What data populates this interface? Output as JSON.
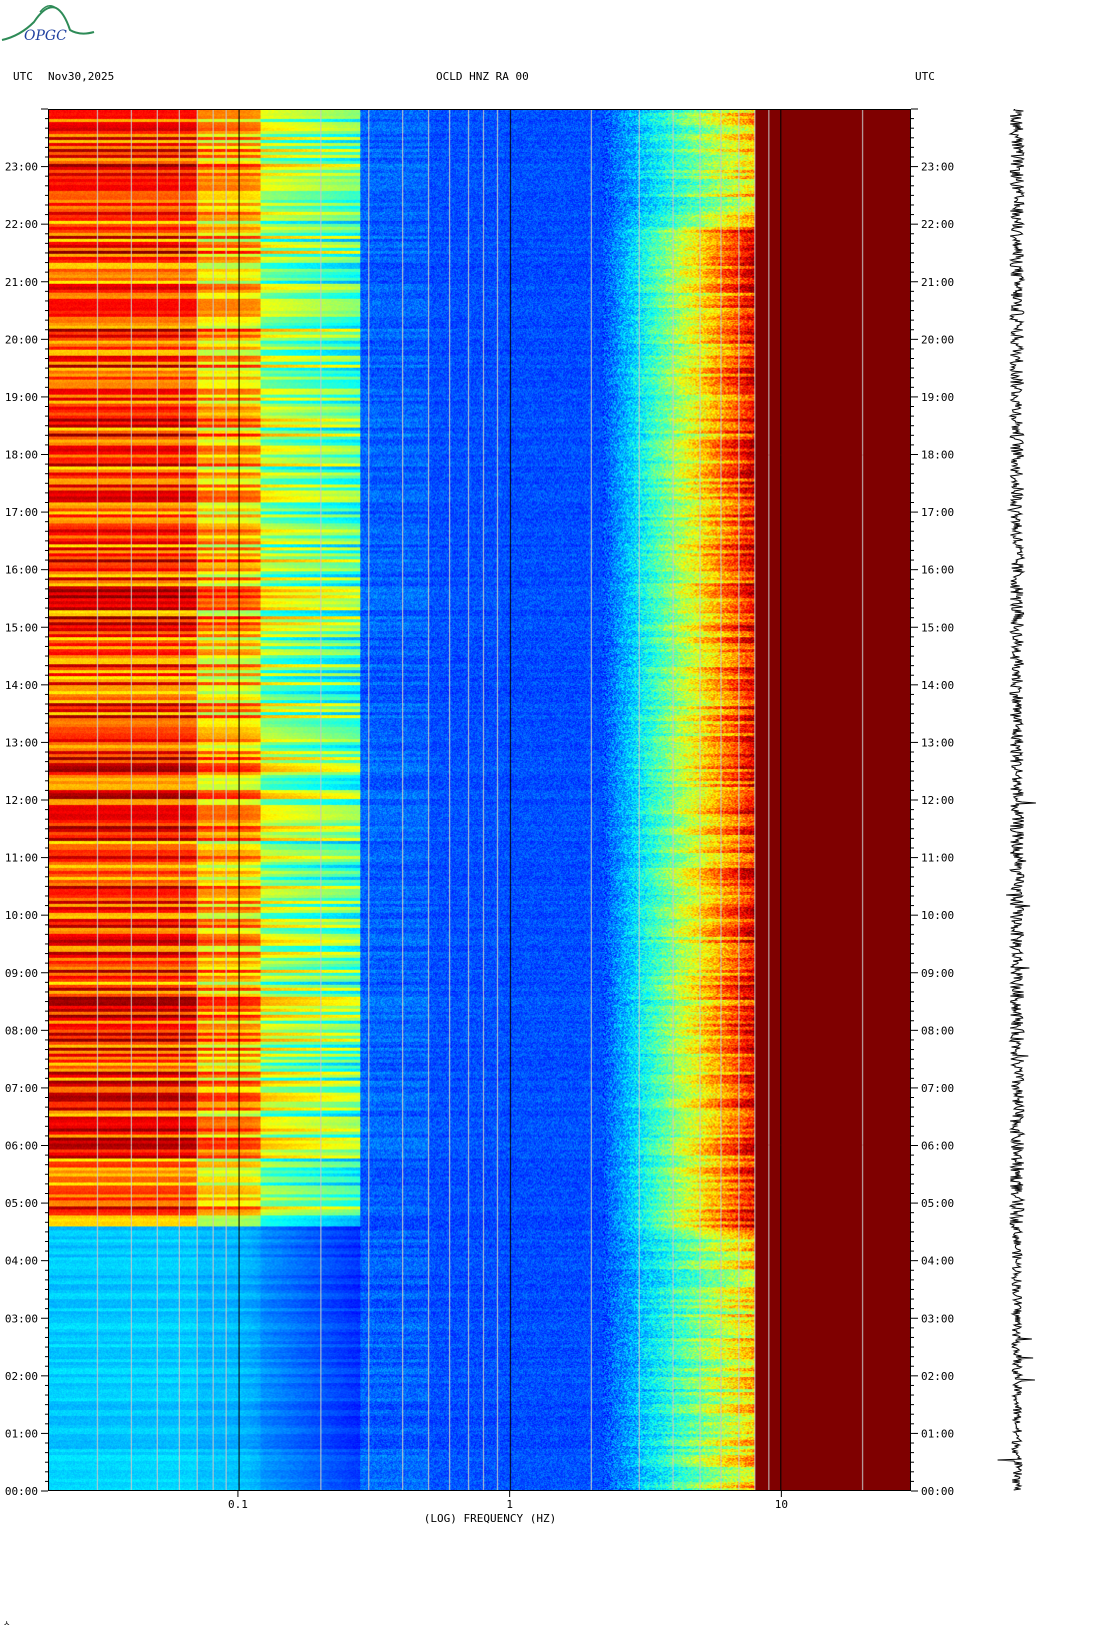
{
  "logo": {
    "text": "OPGC",
    "icon": "opgc-volcano-logo"
  },
  "header": {
    "left_tz": "UTC",
    "date": "Nov30,2025",
    "station": "OCLD HNZ RA 00",
    "right_tz": "UTC"
  },
  "colors": {
    "low": "#0000c8",
    "mid": "#00c8ff",
    "high": "#ffff00",
    "max": "#8b0000",
    "frame": "#000000",
    "freq_grid": "#c8c8c8"
  },
  "footer_mark": "ㅅ",
  "chart_data": {
    "type": "heatmap",
    "title": "OCLD HNZ RA 00",
    "xlabel": "(LOG) FREQUENCY (HZ)",
    "ylabel": "UTC",
    "x_scale": "log",
    "xlim": [
      0.02,
      30
    ],
    "x_tick_values": [
      0.1,
      1,
      10
    ],
    "x_tick_labels": [
      "0.1",
      "1",
      "10"
    ],
    "ylim_hours": [
      0,
      24
    ],
    "y_tick_labels": [
      "00:00",
      "01:00",
      "02:00",
      "03:00",
      "04:00",
      "05:00",
      "06:00",
      "07:00",
      "08:00",
      "09:00",
      "10:00",
      "11:00",
      "12:00",
      "13:00",
      "14:00",
      "15:00",
      "16:00",
      "17:00",
      "18:00",
      "19:00",
      "20:00",
      "21:00",
      "22:00",
      "23:00"
    ],
    "date": "Nov30,2025",
    "color_scale": "jet (blue = low power, dark red = high power)",
    "features": {
      "microseism_band_hz": [
        0.02,
        0.25
      ],
      "low_energy_band_hz": [
        0.35,
        2
      ],
      "high_frequency_saturation_hz": [
        8,
        30
      ]
    }
  }
}
